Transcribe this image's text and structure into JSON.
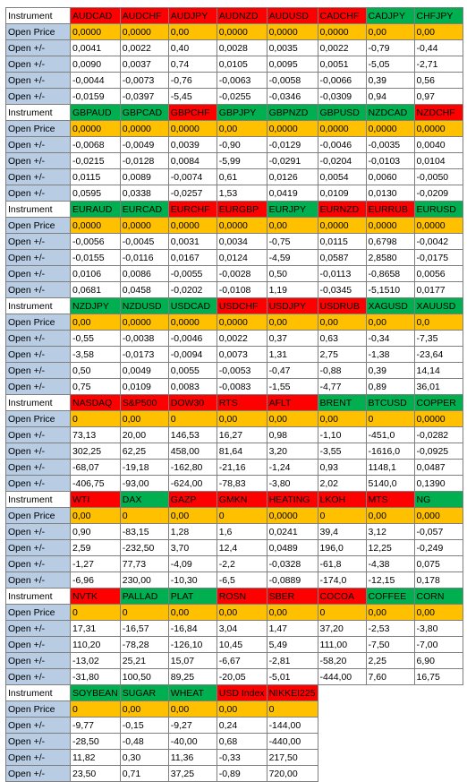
{
  "colors": {
    "red": "#ff0000",
    "green": "#00b050",
    "orange": "#ffc000",
    "label_blue": "#b8cce4",
    "white": "#ffffff"
  },
  "labels": {
    "instrument": "Instrument",
    "open_price": "Open Price",
    "open_delta": "Open +/-"
  },
  "blocks": [
    {
      "instruments": [
        {
          "name": "AUDCAD",
          "color": "red",
          "open_price": "0,0000",
          "deltas": [
            "0,0041",
            "0,0090",
            "-0,0044",
            "-0,0159"
          ]
        },
        {
          "name": "AUDCHF",
          "color": "red",
          "open_price": "0,0000",
          "deltas": [
            "0,0022",
            "0,0037",
            "-0,0073",
            "-0,0397"
          ]
        },
        {
          "name": "AUDJPY",
          "color": "red",
          "open_price": "0,00",
          "deltas": [
            "0,40",
            "0,74",
            "-0,76",
            "-5,45"
          ]
        },
        {
          "name": "AUDNZD",
          "color": "red",
          "open_price": "0,0000",
          "deltas": [
            "0,0028",
            "0,0105",
            "-0,0063",
            "-0,0255"
          ]
        },
        {
          "name": "AUDUSD",
          "color": "red",
          "open_price": "0,0000",
          "deltas": [
            "0,0035",
            "0,0095",
            "-0,0058",
            "-0,0346"
          ]
        },
        {
          "name": "CADCHF",
          "color": "red",
          "open_price": "0,0000",
          "deltas": [
            "0,0022",
            "0,0051",
            "-0,0066",
            "-0,0309"
          ]
        },
        {
          "name": "CADJPY",
          "color": "green",
          "open_price": "0,00",
          "deltas": [
            "-0,79",
            "-5,05",
            "0,39",
            "0,94"
          ]
        },
        {
          "name": "CHFJPY",
          "color": "green",
          "open_price": "0,00",
          "deltas": [
            "-0,44",
            "-2,71",
            "0,56",
            "0,97"
          ]
        }
      ]
    },
    {
      "instruments": [
        {
          "name": "GBPAUD",
          "color": "green",
          "open_price": "0,0000",
          "deltas": [
            "-0,0068",
            "-0,0215",
            "0,0115",
            "0,0595"
          ]
        },
        {
          "name": "GBPCAD",
          "color": "green",
          "open_price": "0,0000",
          "deltas": [
            "-0,0049",
            "-0,0128",
            "0,0089",
            "0,0338"
          ]
        },
        {
          "name": "GBPCHF",
          "color": "red",
          "open_price": "0,0000",
          "deltas": [
            "0,0039",
            "0,0084",
            "-0,0074",
            "-0,0257"
          ]
        },
        {
          "name": "GBPJPY",
          "color": "green",
          "open_price": "0,00",
          "deltas": [
            "-0,90",
            "-5,99",
            "0,61",
            "1,53"
          ]
        },
        {
          "name": "GBPNZD",
          "color": "green",
          "open_price": "0,0000",
          "deltas": [
            "-0,0129",
            "-0,0291",
            "0,0126",
            "0,0419"
          ]
        },
        {
          "name": "GBPUSD",
          "color": "green",
          "open_price": "0,0000",
          "deltas": [
            "-0,0046",
            "-0,0204",
            "0,0054",
            "0,0109"
          ]
        },
        {
          "name": "NZDCAD",
          "color": "green",
          "open_price": "0,0000",
          "deltas": [
            "-0,0035",
            "-0,0103",
            "0,0060",
            "0,0130"
          ]
        },
        {
          "name": "NZDCHF",
          "color": "red",
          "open_price": "0,0000",
          "deltas": [
            "0,0040",
            "0,0104",
            "-0,0050",
            "-0,0209"
          ]
        }
      ]
    },
    {
      "instruments": [
        {
          "name": "EURAUD",
          "color": "green",
          "open_price": "0,0000",
          "deltas": [
            "-0,0056",
            "-0,0155",
            "0,0106",
            "0,0681"
          ]
        },
        {
          "name": "EURCAD",
          "color": "green",
          "open_price": "0,0000",
          "deltas": [
            "-0,0045",
            "-0,0116",
            "0,0086",
            "0,0458"
          ]
        },
        {
          "name": "EURCHF",
          "color": "red",
          "open_price": "0,0000",
          "deltas": [
            "0,0031",
            "0,0167",
            "-0,0055",
            "-0,0202"
          ]
        },
        {
          "name": "EURGBP",
          "color": "red",
          "open_price": "0,0000",
          "deltas": [
            "0,0034",
            "0,0124",
            "-0,0028",
            "-0,0108"
          ]
        },
        {
          "name": "EURJPY",
          "color": "green",
          "open_price": "0,00",
          "deltas": [
            "-0,75",
            "-4,59",
            "0,50",
            "1,19"
          ]
        },
        {
          "name": "EURNZD",
          "color": "red",
          "open_price": "0,0000",
          "deltas": [
            "0,0115",
            "0,0587",
            "-0,0113",
            "-0,0345"
          ]
        },
        {
          "name": "EURRUB",
          "color": "red",
          "open_price": "0,0000",
          "deltas": [
            "0,6798",
            "2,8580",
            "-0,8658",
            "-5,1510"
          ]
        },
        {
          "name": "EURUSD",
          "color": "green",
          "open_price": "0,0000",
          "deltas": [
            "-0,0042",
            "-0,0175",
            "0,0056",
            "0,0177"
          ]
        }
      ]
    },
    {
      "instruments": [
        {
          "name": "NZDJPY",
          "color": "green",
          "open_price": "0,00",
          "deltas": [
            "-0,55",
            "-3,58",
            "0,50",
            "0,75"
          ]
        },
        {
          "name": "NZDUSD",
          "color": "green",
          "open_price": "0,0000",
          "deltas": [
            "-0,0038",
            "-0,0173",
            "0,0049",
            "0,0109"
          ]
        },
        {
          "name": "USDCAD",
          "color": "green",
          "open_price": "0,0000",
          "deltas": [
            "-0,0046",
            "-0,0094",
            "0,0055",
            "0,0083"
          ]
        },
        {
          "name": "USDCHF",
          "color": "red",
          "open_price": "0,0000",
          "deltas": [
            "0,0022",
            "0,0073",
            "-0,0053",
            "-0,0083"
          ]
        },
        {
          "name": "USDJPY",
          "color": "red",
          "open_price": "0,00",
          "deltas": [
            "0,37",
            "1,31",
            "-0,47",
            "-1,55"
          ]
        },
        {
          "name": "USDRUB",
          "color": "red",
          "open_price": "0,00",
          "deltas": [
            "0,63",
            "2,75",
            "-0,88",
            "-4,77"
          ]
        },
        {
          "name": "XAGUSD",
          "color": "green",
          "open_price": "0,00",
          "deltas": [
            "-0,34",
            "-1,38",
            "0,39",
            "0,89"
          ]
        },
        {
          "name": "XAUUSD",
          "color": "green",
          "open_price": "0,0",
          "deltas": [
            "-7,35",
            "-23,64",
            "14,14",
            "36,01"
          ]
        }
      ]
    },
    {
      "instruments": [
        {
          "name": "NASDAQ",
          "color": "red",
          "open_price": "0",
          "deltas": [
            "73,13",
            "302,25",
            "-68,07",
            "-406,75"
          ]
        },
        {
          "name": "S&P500",
          "color": "red",
          "open_price": "0,00",
          "deltas": [
            "20,00",
            "62,25",
            "-19,18",
            "-93,00"
          ]
        },
        {
          "name": "DOW30",
          "color": "red",
          "open_price": "0",
          "deltas": [
            "146,53",
            "458,00",
            "-162,80",
            "-624,00"
          ]
        },
        {
          "name": "RTS",
          "color": "red",
          "open_price": "0,00",
          "deltas": [
            "16,27",
            "81,64",
            "-21,16",
            "-78,83"
          ]
        },
        {
          "name": "AFLT",
          "color": "red",
          "open_price": "0,00",
          "deltas": [
            "0,98",
            "3,20",
            "-1,24",
            "-3,80"
          ]
        },
        {
          "name": "BRENT",
          "color": "green",
          "open_price": "0,00",
          "deltas": [
            "-1,10",
            "-3,55",
            "0,93",
            "2,02"
          ]
        },
        {
          "name": "BTCUSD",
          "color": "green",
          "open_price": "0",
          "deltas": [
            "-451,0",
            "-1616,0",
            "1148,1",
            "5140,0"
          ]
        },
        {
          "name": "COPPER",
          "color": "green",
          "open_price": "0,0000",
          "deltas": [
            "-0,0282",
            "-0,0925",
            "0,0487",
            "0,1390"
          ]
        }
      ]
    },
    {
      "instruments": [
        {
          "name": "WTI",
          "color": "red",
          "open_price": "0,00",
          "deltas": [
            "0,90",
            "2,59",
            "-1,27",
            "-6,96"
          ]
        },
        {
          "name": "DAX",
          "color": "green",
          "open_price": "0",
          "deltas": [
            "-83,15",
            "-232,50",
            "77,73",
            "230,00"
          ]
        },
        {
          "name": "GAZP",
          "color": "red",
          "open_price": "0,00",
          "deltas": [
            "1,28",
            "3,70",
            "-4,09",
            "-10,30"
          ]
        },
        {
          "name": "GMKN",
          "color": "red",
          "open_price": "0",
          "deltas": [
            "1,6",
            "12,4",
            "-2,2",
            "-6,5"
          ]
        },
        {
          "name": "HEATING",
          "color": "red",
          "open_price": "0,0000",
          "deltas": [
            "0,0241",
            "0,0489",
            "-0,0328",
            "-0,0889"
          ]
        },
        {
          "name": "LKOH",
          "color": "red",
          "open_price": "0",
          "deltas": [
            "39,4",
            "196,0",
            "-61,8",
            "-174,0"
          ]
        },
        {
          "name": "MTS",
          "color": "red",
          "open_price": "0,00",
          "deltas": [
            "3,12",
            "12,25",
            "-4,38",
            "-12,15"
          ]
        },
        {
          "name": "NG",
          "color": "green",
          "open_price": "0,000",
          "deltas": [
            "-0,057",
            "-0,249",
            "0,075",
            "0,178"
          ]
        }
      ]
    },
    {
      "instruments": [
        {
          "name": "NVTK",
          "color": "red",
          "open_price": "0",
          "deltas": [
            "17,31",
            "110,20",
            "-13,02",
            "-31,80"
          ]
        },
        {
          "name": "PALLAD",
          "color": "green",
          "open_price": "0",
          "deltas": [
            "-16,57",
            "-78,28",
            "25,21",
            "100,50"
          ]
        },
        {
          "name": "PLAT",
          "color": "green",
          "open_price": "0,00",
          "deltas": [
            "-16,84",
            "-126,10",
            "15,07",
            "89,25"
          ]
        },
        {
          "name": "ROSN",
          "color": "red",
          "open_price": "0,00",
          "deltas": [
            "3,04",
            "10,45",
            "-6,67",
            "-20,05"
          ]
        },
        {
          "name": "SBER",
          "color": "red",
          "open_price": "0,00",
          "deltas": [
            "1,47",
            "5,49",
            "-2,81",
            "-5,01"
          ]
        },
        {
          "name": "COCOA",
          "color": "red",
          "open_price": "0",
          "deltas": [
            "37,20",
            "111,00",
            "-58,20",
            "-444,00"
          ]
        },
        {
          "name": "COFFEE",
          "color": "green",
          "open_price": "0,00",
          "deltas": [
            "-2,53",
            "-7,50",
            "2,25",
            "7,60"
          ]
        },
        {
          "name": "CORN",
          "color": "green",
          "open_price": "0,00",
          "deltas": [
            "-3,80",
            "-7,00",
            "6,90",
            "16,75"
          ]
        }
      ]
    },
    {
      "instruments": [
        {
          "name": "SOYBEAN",
          "color": "green",
          "open_price": "0",
          "deltas": [
            "-9,77",
            "-28,50",
            "11,82",
            "23,50"
          ]
        },
        {
          "name": "SUGAR",
          "color": "green",
          "open_price": "0,00",
          "deltas": [
            "-0,15",
            "-0,48",
            "0,30",
            "0,71"
          ]
        },
        {
          "name": "WHEAT",
          "color": "green",
          "open_price": "0,00",
          "deltas": [
            "-9,27",
            "-40,00",
            "11,36",
            "37,25"
          ]
        },
        {
          "name": "USD Index",
          "color": "red",
          "open_price": "0,00",
          "deltas": [
            "0,24",
            "0,68",
            "-0,33",
            "-0,89"
          ]
        },
        {
          "name": "NIKKEI225",
          "color": "red",
          "open_price": "0",
          "deltas": [
            "-144,00",
            "-440,00",
            "217,50",
            "720,00"
          ]
        }
      ]
    }
  ]
}
